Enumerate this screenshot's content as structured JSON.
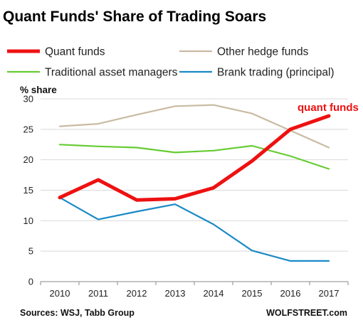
{
  "title": "Quant Funds' Share of Trading Soars",
  "colors": {
    "quant": "#ee1111",
    "other_hedge": "#c9bba2",
    "traditional": "#66cc33",
    "bank": "#1a8ac6",
    "grid": "#d9d9d9",
    "axis": "#888888"
  },
  "chart_data": {
    "type": "line",
    "title": "Quant Funds' Share of Trading Soars",
    "xlabel": "",
    "ylabel": "% share",
    "x": [
      "2010",
      "2011",
      "2012",
      "2013",
      "2014",
      "2015",
      "2016",
      "2017"
    ],
    "yticks": [
      "0",
      "5",
      "10",
      "15",
      "20",
      "25",
      "30"
    ],
    "ylim": [
      0,
      30
    ],
    "grid": "horizontal",
    "legend_position": "top",
    "series": [
      {
        "name": "Quant funds",
        "values": [
          13.8,
          16.7,
          13.4,
          13.6,
          15.4,
          19.8,
          25.0,
          27.2
        ]
      },
      {
        "name": "Other hedge funds",
        "values": [
          25.5,
          25.9,
          27.4,
          28.8,
          29.0,
          27.6,
          24.8,
          22.0
        ]
      },
      {
        "name": "Traditional asset managers",
        "values": [
          22.5,
          22.2,
          22.0,
          21.2,
          21.5,
          22.3,
          20.6,
          18.5
        ]
      },
      {
        "name": "Brank trading (principal)",
        "values": [
          13.8,
          10.2,
          11.5,
          12.7,
          9.4,
          5.1,
          3.4,
          3.4
        ]
      }
    ],
    "annotations": [
      {
        "text": "quant funds",
        "series": "Quant funds"
      }
    ]
  },
  "footer": {
    "source": "Sources: WSJ, Tabb Group",
    "credit": "WOLFSTREET.com"
  }
}
